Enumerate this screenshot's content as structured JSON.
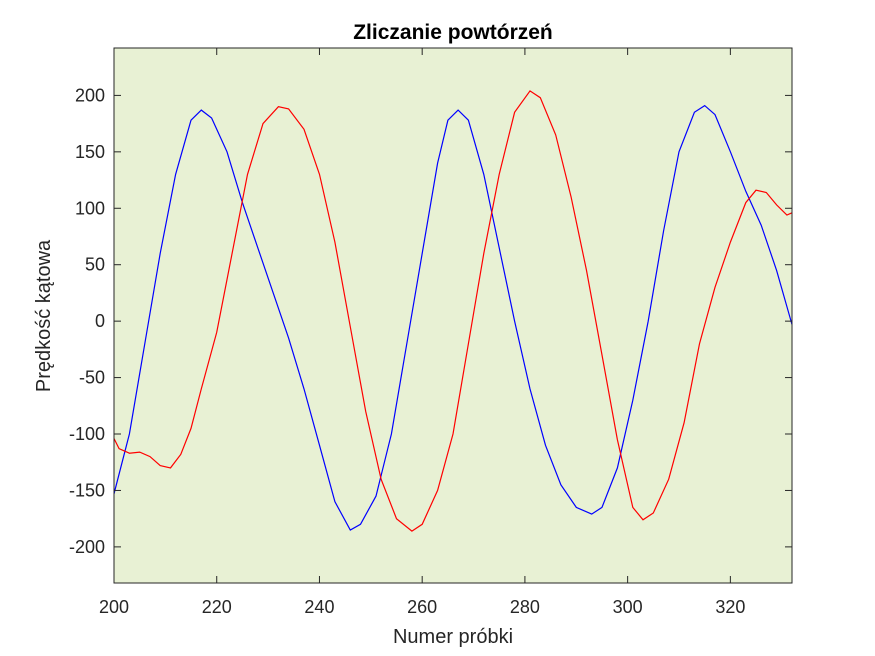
{
  "chart_data": {
    "type": "line",
    "title": "Zliczanie powtórzeń",
    "xlabel": "Numer próbki",
    "ylabel": "Prędkość kątowa",
    "xlim": [
      200,
      332
    ],
    "ylim": [
      -232,
      242
    ],
    "xticks": [
      200,
      220,
      240,
      260,
      280,
      300,
      320
    ],
    "yticks": [
      200,
      150,
      100,
      50,
      0,
      -50,
      -100,
      -150,
      -200
    ],
    "xtick_labels": [
      "200",
      "220",
      "240",
      "260",
      "280",
      "300",
      "320"
    ],
    "ytick_labels": [
      "200",
      "150",
      "100",
      "50",
      "0",
      "-50",
      "-100",
      "-150",
      "-200"
    ],
    "grid": false,
    "background_color": "#e8f1d4",
    "series": [
      {
        "color": "#0000ff",
        "points": [
          [
            200,
            -153
          ],
          [
            203,
            -100
          ],
          [
            206,
            -20
          ],
          [
            209,
            60
          ],
          [
            212,
            130
          ],
          [
            215,
            178
          ],
          [
            217,
            187
          ],
          [
            219,
            180
          ],
          [
            222,
            150
          ],
          [
            225,
            105
          ],
          [
            228,
            65
          ],
          [
            231,
            25
          ],
          [
            234,
            -15
          ],
          [
            237,
            -60
          ],
          [
            240,
            -110
          ],
          [
            243,
            -160
          ],
          [
            246,
            -185
          ],
          [
            248,
            -180
          ],
          [
            251,
            -155
          ],
          [
            254,
            -100
          ],
          [
            257,
            -20
          ],
          [
            260,
            60
          ],
          [
            263,
            140
          ],
          [
            265,
            178
          ],
          [
            267,
            187
          ],
          [
            269,
            178
          ],
          [
            272,
            130
          ],
          [
            275,
            65
          ],
          [
            278,
            0
          ],
          [
            281,
            -60
          ],
          [
            284,
            -110
          ],
          [
            287,
            -145
          ],
          [
            290,
            -165
          ],
          [
            293,
            -171
          ],
          [
            295,
            -165
          ],
          [
            298,
            -130
          ],
          [
            301,
            -70
          ],
          [
            304,
            0
          ],
          [
            307,
            80
          ],
          [
            310,
            150
          ],
          [
            313,
            185
          ],
          [
            315,
            191
          ],
          [
            317,
            183
          ],
          [
            320,
            150
          ],
          [
            323,
            115
          ],
          [
            326,
            85
          ],
          [
            329,
            45
          ],
          [
            332,
            -3
          ]
        ]
      },
      {
        "color": "#ff0000",
        "points": [
          [
            200,
            -104
          ],
          [
            201,
            -113
          ],
          [
            203,
            -117
          ],
          [
            205,
            -116
          ],
          [
            207,
            -120
          ],
          [
            209,
            -128
          ],
          [
            211,
            -130
          ],
          [
            213,
            -118
          ],
          [
            215,
            -95
          ],
          [
            217,
            -60
          ],
          [
            220,
            -10
          ],
          [
            223,
            60
          ],
          [
            226,
            130
          ],
          [
            229,
            175
          ],
          [
            232,
            190
          ],
          [
            234,
            188
          ],
          [
            237,
            170
          ],
          [
            240,
            130
          ],
          [
            243,
            70
          ],
          [
            246,
            -5
          ],
          [
            249,
            -80
          ],
          [
            252,
            -140
          ],
          [
            255,
            -175
          ],
          [
            258,
            -186
          ],
          [
            260,
            -180
          ],
          [
            263,
            -150
          ],
          [
            266,
            -100
          ],
          [
            269,
            -20
          ],
          [
            272,
            60
          ],
          [
            275,
            130
          ],
          [
            278,
            185
          ],
          [
            281,
            204
          ],
          [
            283,
            198
          ],
          [
            286,
            165
          ],
          [
            289,
            110
          ],
          [
            292,
            45
          ],
          [
            295,
            -30
          ],
          [
            298,
            -105
          ],
          [
            301,
            -165
          ],
          [
            303,
            -176
          ],
          [
            305,
            -170
          ],
          [
            308,
            -140
          ],
          [
            311,
            -90
          ],
          [
            314,
            -20
          ],
          [
            317,
            30
          ],
          [
            320,
            70
          ],
          [
            323,
            105
          ],
          [
            325,
            116
          ],
          [
            327,
            114
          ],
          [
            329,
            103
          ],
          [
            331,
            94
          ],
          [
            332,
            96
          ]
        ]
      }
    ]
  }
}
